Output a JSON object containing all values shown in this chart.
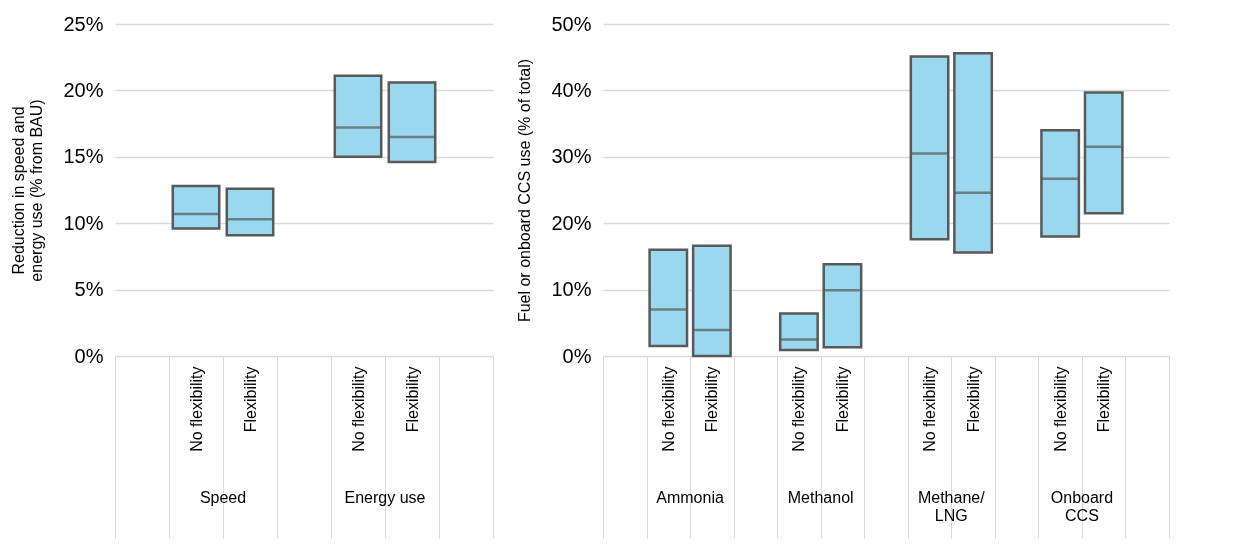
{
  "chart_data": [
    {
      "type": "box",
      "ylabel": "Reduction in speed and energy use (% from BAU)",
      "categories": [
        null,
        "No flexibility",
        "Flexibility",
        null,
        "No flexibility",
        "Flexibility",
        null
      ],
      "series": [
        {
          "color": "#9ad8ef",
          "boxes": [
            null,
            {
              "low": 9.6,
              "q1": 9.6,
              "median": 10.7,
              "q3": 12.8,
              "high": 12.8
            },
            {
              "low": 9.1,
              "q1": 9.1,
              "median": 10.3,
              "q3": 12.6,
              "high": 12.6
            },
            null,
            {
              "low": 15.0,
              "q1": 15.0,
              "median": 17.2,
              "q3": 21.1,
              "high": 21.1
            },
            {
              "low": 14.6,
              "q1": 14.6,
              "median": 16.5,
              "q3": 20.6,
              "high": 20.6
            },
            null
          ]
        }
      ],
      "ylim": [
        0,
        25
      ],
      "yticks": [
        {
          "value": 0,
          "label": "0%"
        },
        {
          "value": 5,
          "label": "5%"
        },
        {
          "value": 10,
          "label": "10%"
        },
        {
          "value": 15,
          "label": "15%"
        },
        {
          "value": 20,
          "label": "20%"
        },
        {
          "value": 25,
          "label": "25%"
        }
      ],
      "grid": "y",
      "annotations": [
        "Speed",
        "Energy use"
      ]
    },
    {
      "type": "box",
      "ylabel": "Fuel or onboard CCS use (% of total)",
      "categories": [
        null,
        "No flexibility",
        "Flexibility",
        null,
        "No flexibility",
        "Flexibility",
        null,
        "No flexibility",
        "Flexibility",
        null,
        "No flexibility",
        "Flexibility",
        null
      ],
      "series": [
        {
          "color": "#9ad8ef",
          "boxes": [
            null,
            {
              "low": 1.5,
              "q1": 1.5,
              "median": 7.0,
              "q3": 16.0,
              "high": 16.0
            },
            {
              "low": 0,
              "q1": 0,
              "median": 3.9,
              "q3": 16.6,
              "high": 16.6
            },
            null,
            {
              "low": 0.9,
              "q1": 0.9,
              "median": 2.5,
              "q3": 6.4,
              "high": 6.4
            },
            {
              "low": 1.3,
              "q1": 1.3,
              "median": 9.9,
              "q3": 13.8,
              "high": 13.8
            },
            null,
            {
              "low": 17.6,
              "q1": 17.6,
              "median": 30.5,
              "q3": 45.1,
              "high": 45.1
            },
            {
              "low": 15.6,
              "q1": 15.6,
              "median": 24.6,
              "q3": 45.6,
              "high": 45.6
            },
            null,
            {
              "low": 18.0,
              "q1": 18.0,
              "median": 26.7,
              "q3": 34.0,
              "high": 34.0
            },
            {
              "low": 21.5,
              "q1": 21.5,
              "median": 31.5,
              "q3": 39.7,
              "high": 39.7
            },
            null
          ]
        }
      ],
      "ylim": [
        0,
        50
      ],
      "yticks": [
        {
          "value": 0,
          "label": "0%"
        },
        {
          "value": 10,
          "label": "10%"
        },
        {
          "value": 20,
          "label": "20%"
        },
        {
          "value": 30,
          "label": "30%"
        },
        {
          "value": 40,
          "label": "40%"
        },
        {
          "value": 50,
          "label": "50%"
        }
      ],
      "grid": "y",
      "annotations": [
        "Ammonia",
        "Methanol",
        "Methane/\nLNG",
        "Onboard\nCCS"
      ]
    }
  ]
}
